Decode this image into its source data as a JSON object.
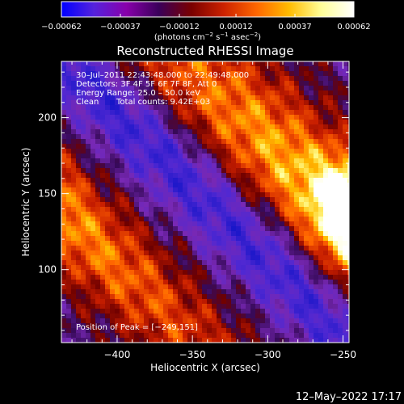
{
  "chart_data": {
    "type": "heatmap",
    "title": "Reconstructed RHESSI Image",
    "xlabel": "Heliocentric X (arcsec)",
    "ylabel": "Heliocentric Y (arcsec)",
    "xlim": [
      -437,
      -246
    ],
    "ylim": [
      52,
      237
    ],
    "x_ticks": [
      -400,
      -350,
      -300,
      -250
    ],
    "x_tick_labels": [
      "−400",
      "−350",
      "−300",
      "−250"
    ],
    "y_ticks": [
      100,
      150,
      200
    ],
    "y_tick_labels": [
      "100",
      "150",
      "200"
    ],
    "colorbar": {
      "min": -0.00062,
      "max": 0.00062,
      "ticks": [
        -0.00062,
        -0.00037,
        -0.00012,
        0.00012,
        0.00037,
        0.00062
      ],
      "tick_labels": [
        "−0.00062",
        "−0.00037",
        "−0.00012",
        "0.00012",
        "0.00037",
        "0.00062"
      ],
      "units_parts": [
        "(photons cm",
        "−2",
        " s",
        "−1",
        " asec",
        "−2",
        ")"
      ],
      "colormap": [
        "#0000ff",
        "#5522dd",
        "#8800aa",
        "#3a005a",
        "#7a0000",
        "#cc2200",
        "#ff6600",
        "#ffbb00",
        "#ffff99",
        "#ffffff"
      ]
    },
    "annotations": {
      "time_range": "30–Jul–2011 22:43:48.000 to 22:49:48.000",
      "detectors": "Detectors: 3F 4F 5F 6F 7F 8F, Att 0",
      "energy": "Energy Range: 25.0 – 50.0 keV",
      "clean": "Clean",
      "counts": "Total counts: 9.42E+03",
      "peak": "Position of Peak = [−249,151]"
    },
    "peak_position": [
      -249,
      151
    ]
  },
  "footer": {
    "timestamp": "12–May–2022 17:17"
  }
}
